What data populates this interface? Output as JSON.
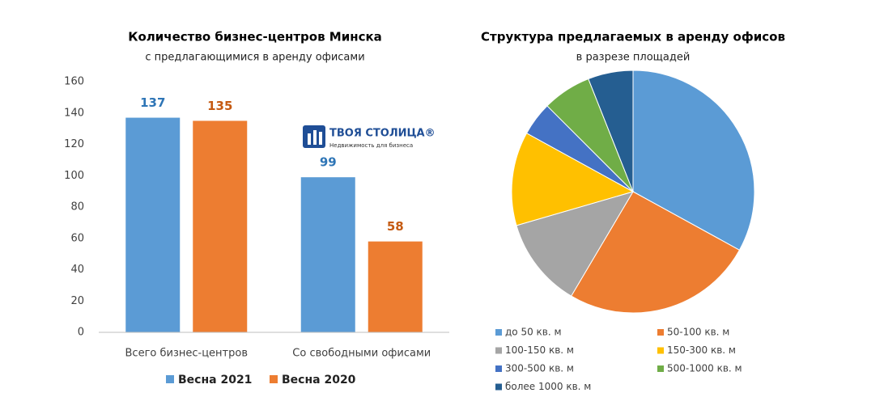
{
  "chart_data": [
    {
      "type": "bar",
      "title": "Количество бизнес-центров Минска",
      "subtitle": "с предлагающимися в аренду офисами",
      "categories": [
        "Всего бизнес-центров",
        "Со свободными офисами"
      ],
      "series": [
        {
          "name": "Весна 2021",
          "color": "#5b9bd5",
          "label_color": "#2e75b6",
          "values": [
            137,
            99
          ]
        },
        {
          "name": "Весна 2020",
          "color": "#ed7d31",
          "label_color": "#c55a11",
          "values": [
            135,
            58
          ]
        }
      ],
      "ylim": [
        0,
        160
      ],
      "yticks": [
        0,
        20,
        40,
        60,
        80,
        100,
        120,
        140,
        160
      ],
      "grid": false,
      "legend": "bottom"
    },
    {
      "type": "pie",
      "title": "Структура предлагаемых в аренду офисов",
      "subtitle": "в разрезе площадей",
      "categories": [
        "до 50 кв. м",
        "50-100 кв. м",
        "100-150 кв. м",
        "150-300 кв. м",
        "300-500 кв. м",
        "500-1000 кв. м",
        "более 1000 кв. м"
      ],
      "values": [
        33,
        25.5,
        12,
        12.5,
        4.5,
        6.5,
        6
      ],
      "colors": [
        "#5b9bd5",
        "#ed7d31",
        "#a5a5a5",
        "#ffc000",
        "#4472c4",
        "#70ad47",
        "#255e91"
      ],
      "legend": "bottom"
    }
  ],
  "logo": {
    "title": "ТВОЯ СТОЛИЦА®",
    "subtitle": "Недвижимость для бизнеса"
  }
}
